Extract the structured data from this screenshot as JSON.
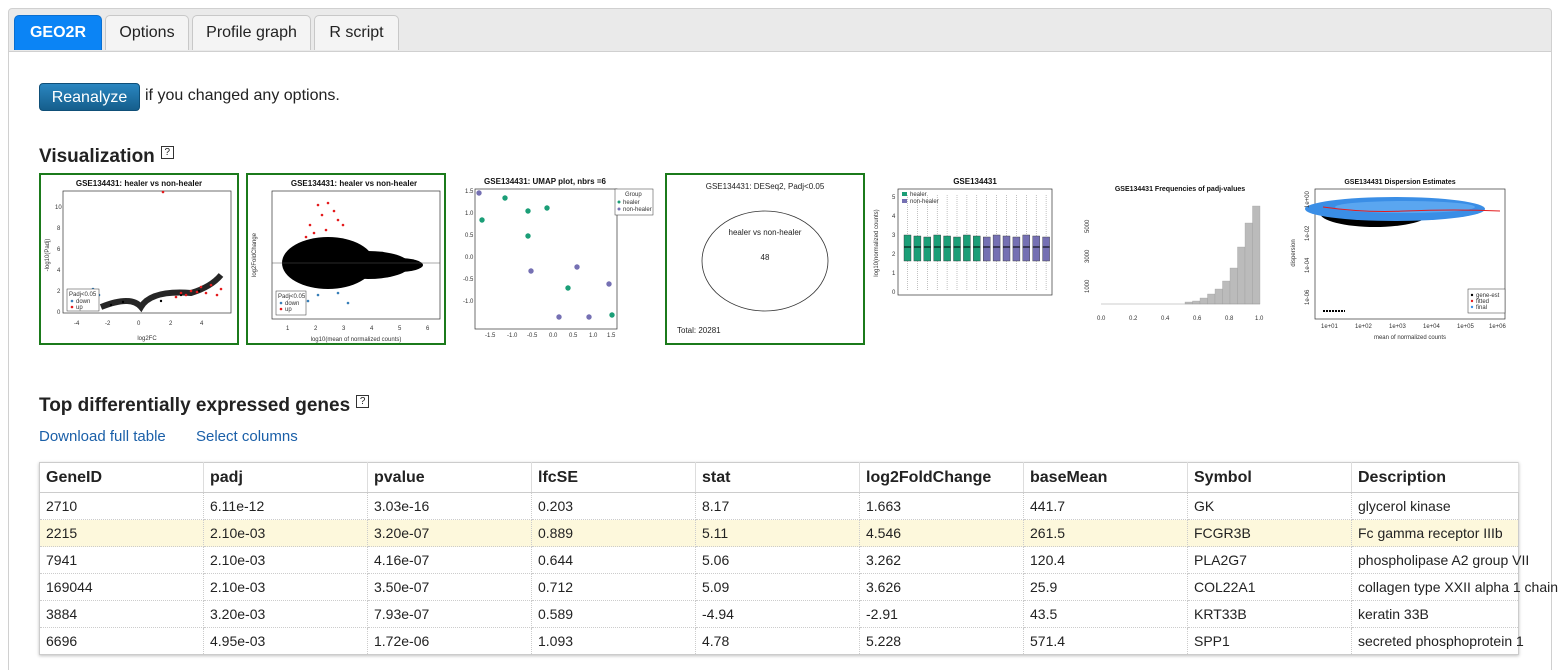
{
  "tabs": [
    {
      "label": "GEO2R",
      "active": true
    },
    {
      "label": "Options",
      "active": false
    },
    {
      "label": "Profile graph",
      "active": false
    },
    {
      "label": "R script",
      "active": false
    }
  ],
  "reanalyze": {
    "button": "Reanalyze",
    "text": "if you changed any options."
  },
  "visualization": {
    "title": "Visualization",
    "help": "?",
    "thumbs": {
      "volcano": {
        "title": "GSE134431: healer vs non-healer",
        "xlabel": "log2FC",
        "ylabel": "-log10(Padj)",
        "legend_title": "Padj<0.05",
        "legend": [
          "down",
          "up"
        ]
      },
      "ma": {
        "title": "GSE134431: healer vs non-healer",
        "xlabel": "log10(mean of normalized counts)",
        "ylabel": "log2FoldChange",
        "legend_title": "Padj<0.05",
        "legend": [
          "down",
          "up"
        ]
      },
      "umap": {
        "title": "GSE134431: UMAP plot, nbrs =6",
        "legend_title": "Group",
        "legend": [
          "healer",
          "non-healer"
        ]
      },
      "venn": {
        "title": "GSE134431: DESeq2, Padj<0.05",
        "label": "healer vs non-healer",
        "count": "48",
        "total": "Total: 20281"
      },
      "boxplot": {
        "title": "GSE134431",
        "ylabel": "log10(normalized counts)",
        "legend": [
          "healer",
          "non-healer"
        ]
      },
      "histogram": {
        "title": "GSE134431 Frequencies of padj-values"
      },
      "dispersion": {
        "title": "GSE134431 Dispersion Estimates",
        "xlabel": "mean of normalized counts",
        "ylabel": "dispersion",
        "legend": [
          "gene-est",
          "fitted",
          "final"
        ]
      }
    }
  },
  "deg": {
    "title": "Top differentially expressed genes",
    "help": "?",
    "download": "Download full table",
    "select": "Select columns",
    "columns": [
      "GeneID",
      "padj",
      "pvalue",
      "lfcSE",
      "stat",
      "log2FoldChange",
      "baseMean",
      "Symbol",
      "Description"
    ],
    "rows": [
      [
        "2710",
        "6.11e-12",
        "3.03e-16",
        "0.203",
        "8.17",
        "1.663",
        "441.7",
        "GK",
        "glycerol kinase"
      ],
      [
        "2215",
        "2.10e-03",
        "3.20e-07",
        "0.889",
        "5.11",
        "4.546",
        "261.5",
        "FCGR3B",
        "Fc gamma receptor IIIb"
      ],
      [
        "7941",
        "2.10e-03",
        "4.16e-07",
        "0.644",
        "5.06",
        "3.262",
        "120.4",
        "PLA2G7",
        "phospholipase A2 group VII"
      ],
      [
        "169044",
        "2.10e-03",
        "3.50e-07",
        "0.712",
        "5.09",
        "3.626",
        "25.9",
        "COL22A1",
        "collagen type XXII alpha 1 chain"
      ],
      [
        "3884",
        "3.20e-03",
        "7.93e-07",
        "0.589",
        "-4.94",
        "-2.91",
        "43.5",
        "KRT33B",
        "keratin 33B"
      ],
      [
        "6696",
        "4.95e-03",
        "1.72e-06",
        "1.093",
        "4.78",
        "5.228",
        "571.4",
        "SPP1",
        "secreted phosphoprotein 1"
      ]
    ]
  },
  "colors": {
    "accent": "#0b84f5",
    "healer": "#1b9e77",
    "nonhealer": "#7570b3",
    "up": "#e41a1c",
    "down": "#377eb8",
    "selected_border": "#1b7a1b"
  }
}
